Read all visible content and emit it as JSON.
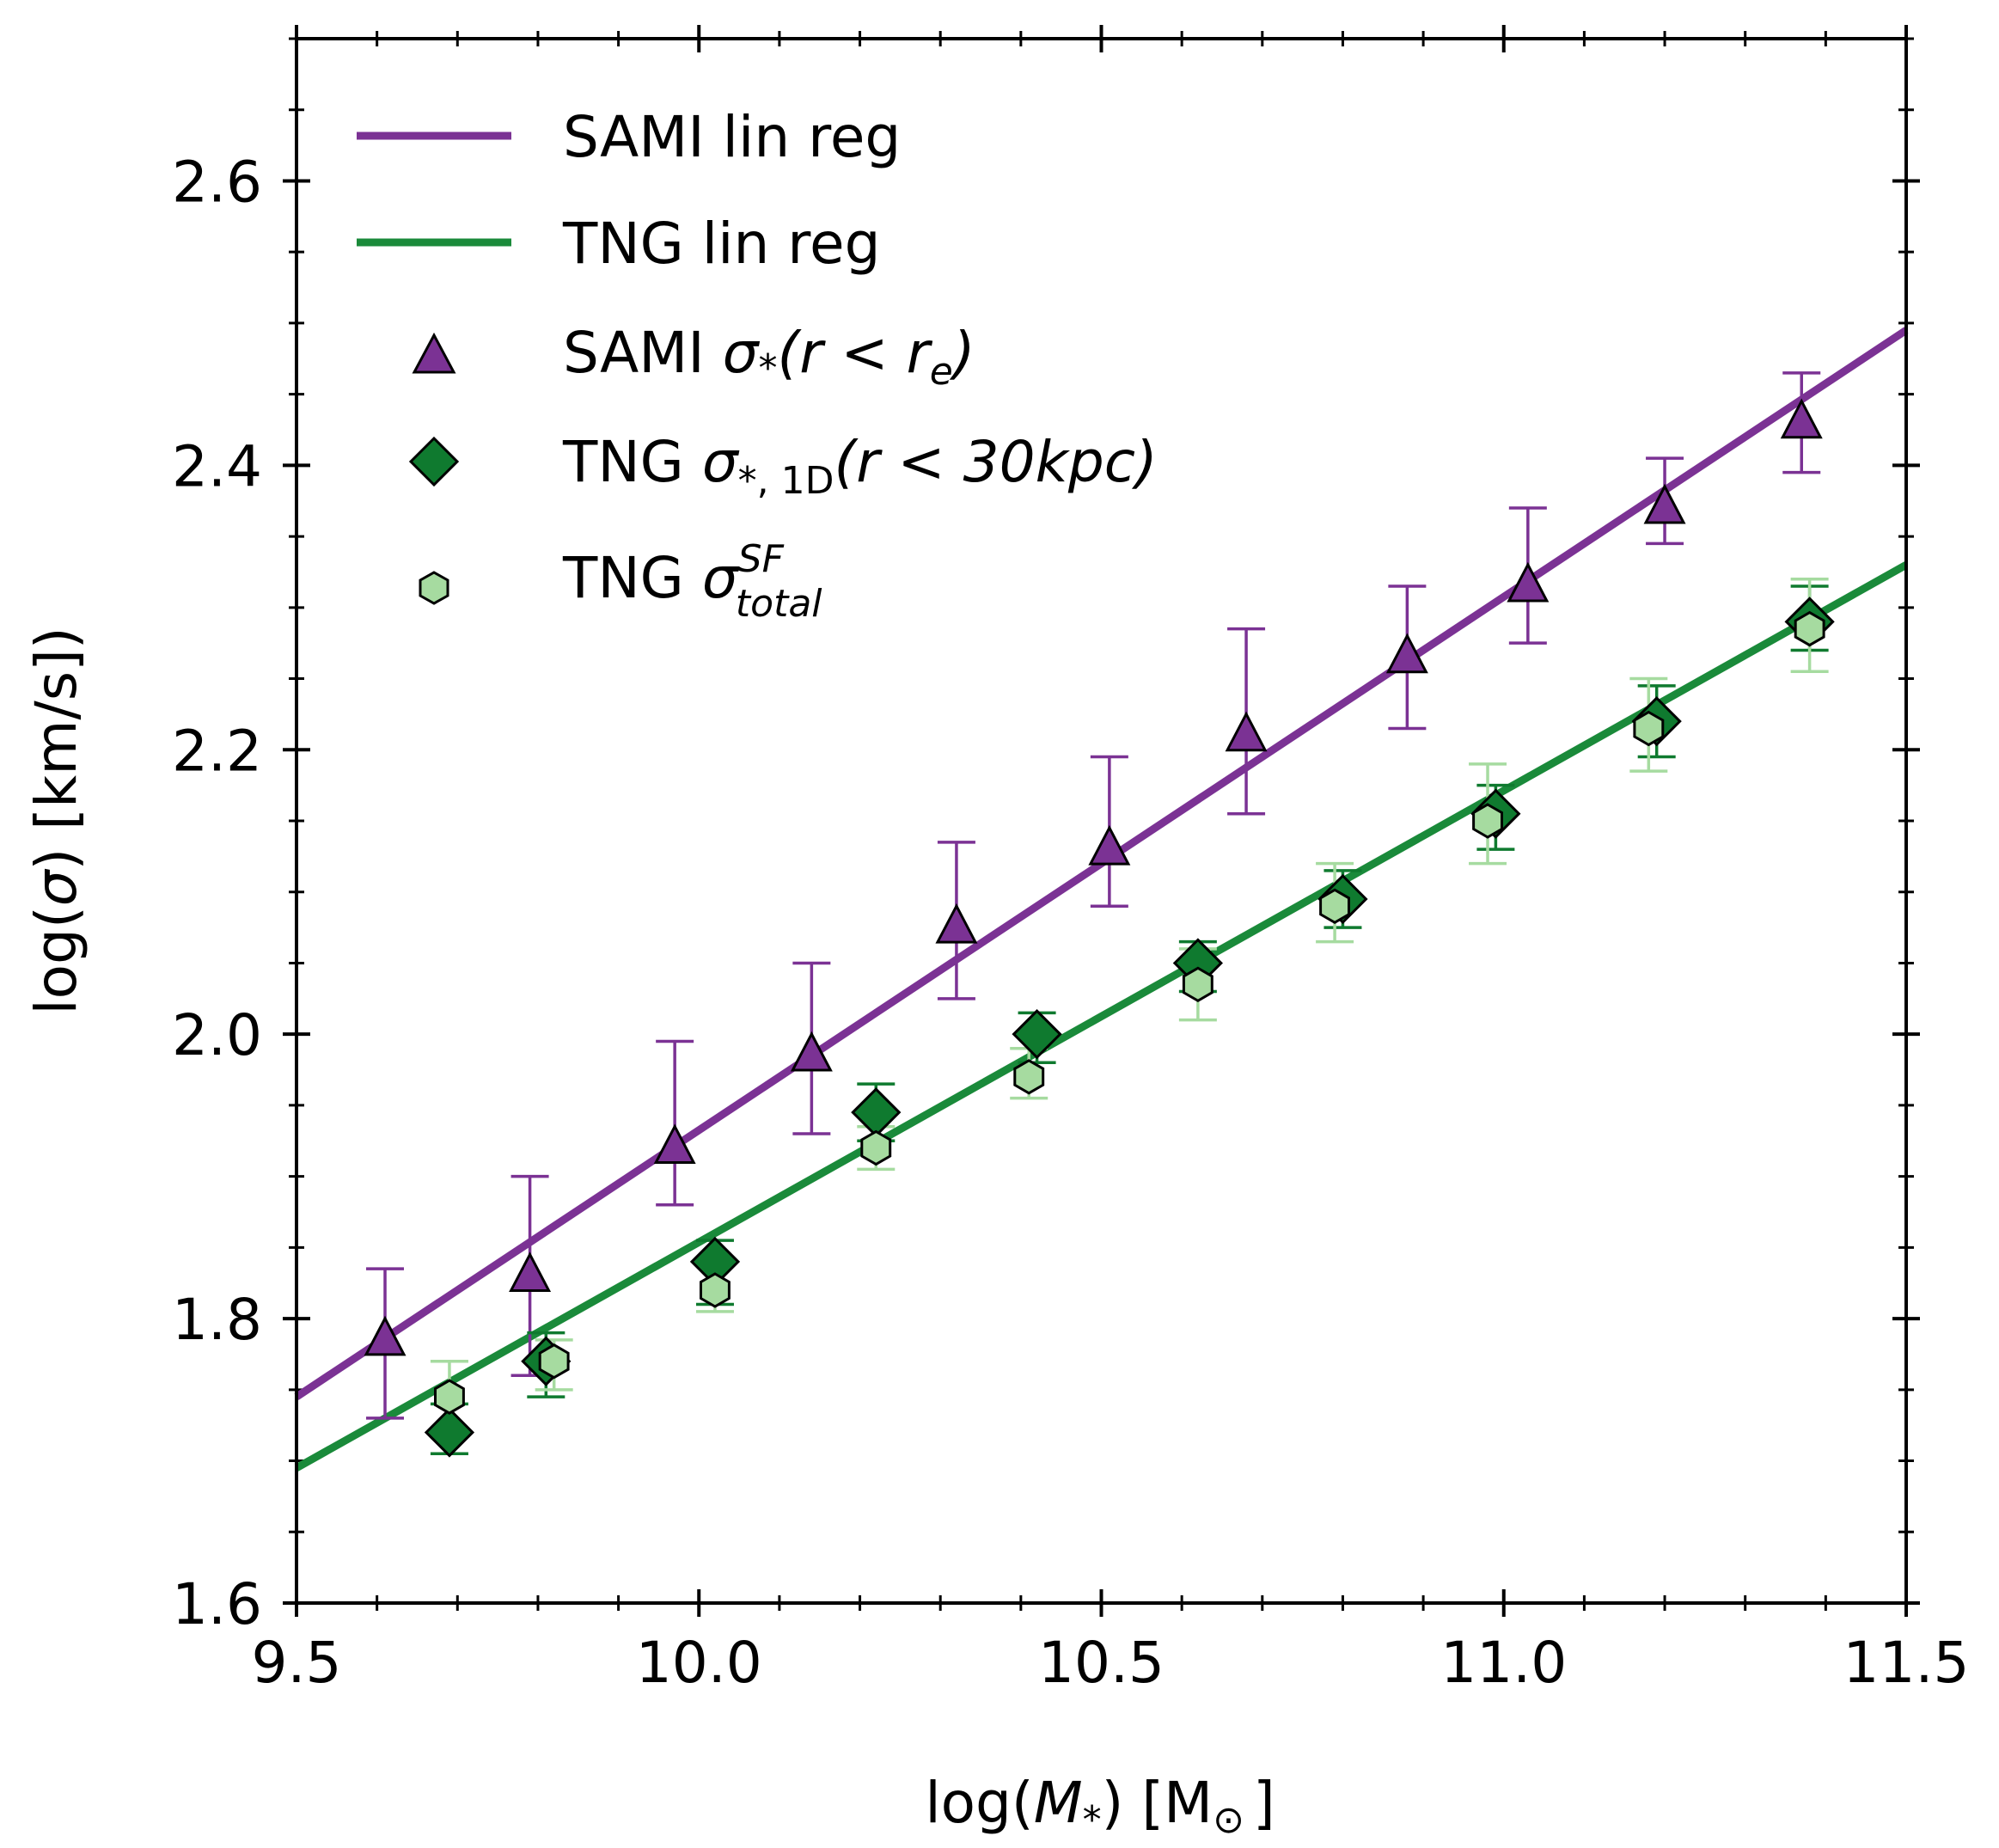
{
  "chart_data": {
    "type": "scatter",
    "xlabel": {
      "pre": "log(",
      "var": "M",
      "sub": "*",
      "post": ") [M",
      "sun": "⊙",
      "end": "]"
    },
    "ylabel": {
      "pre": "log(",
      "var": "σ",
      "post": ") [km/s])"
    },
    "xlim": [
      9.5,
      11.5
    ],
    "ylim": [
      1.6,
      2.7
    ],
    "xticks": [
      9.5,
      10.0,
      10.5,
      11.0,
      11.5
    ],
    "xtick_labels": [
      "9.5",
      "10.0",
      "10.5",
      "11.0",
      "11.5"
    ],
    "yticks": [
      1.6,
      1.8,
      2.0,
      2.2,
      2.4,
      2.6
    ],
    "ytick_labels": [
      "1.6",
      "1.8",
      "2.0",
      "2.2",
      "2.4",
      "2.6"
    ],
    "x_minor_step": 0.1,
    "y_minor_step": 0.05,
    "grid": false,
    "legend_position": "top-left",
    "colors": {
      "sami": "#7b3294",
      "tng_line": "#1a8a3a",
      "tng_diamond": "#0f7a2f",
      "tng_hex": "#a6dba0",
      "tng_hex_err": "#a6dba0"
    },
    "legend": [
      {
        "key": "sami_line",
        "label": "SAMI lin reg"
      },
      {
        "key": "tng_line",
        "label": "TNG lin reg"
      },
      {
        "key": "sami_pts",
        "prefix": "SAMI ",
        "sym": "σ",
        "sub": "*",
        "rest": "(r < r",
        "rest_sub": "e",
        "close": ")"
      },
      {
        "key": "tng_diam",
        "prefix": "TNG ",
        "sym": "σ",
        "sub": "*, 1D",
        "rest": "(r < 30kpc)"
      },
      {
        "key": "tng_hex",
        "prefix": "TNG ",
        "sym": "σ",
        "sup": "SF",
        "sub": "total"
      }
    ],
    "series": [
      {
        "name": "SAMI lin reg",
        "kind": "line",
        "x": [
          9.5,
          11.5
        ],
        "y": [
          1.745,
          2.495
        ]
      },
      {
        "name": "TNG lin reg",
        "kind": "line",
        "x": [
          9.5,
          11.5
        ],
        "y": [
          1.695,
          2.33
        ]
      },
      {
        "name": "SAMI σ*(r < re)",
        "kind": "points",
        "marker": "triangle",
        "x": [
          9.61,
          9.79,
          9.97,
          10.14,
          10.32,
          10.51,
          10.68,
          10.88,
          11.03,
          11.2,
          11.37
        ],
        "y": [
          1.785,
          1.83,
          1.92,
          1.985,
          2.075,
          2.13,
          2.21,
          2.265,
          2.315,
          2.37,
          2.43
        ],
        "ylo": [
          1.73,
          1.76,
          1.88,
          1.93,
          2.025,
          2.09,
          2.155,
          2.215,
          2.275,
          2.345,
          2.395
        ],
        "yhi": [
          1.835,
          1.9,
          1.995,
          2.05,
          2.135,
          2.195,
          2.285,
          2.315,
          2.37,
          2.405,
          2.465
        ]
      },
      {
        "name": "TNG σ*,1D(r < 30kpc)",
        "kind": "points",
        "marker": "diamond",
        "x": [
          9.69,
          9.81,
          10.02,
          10.22,
          10.42,
          10.62,
          10.8,
          10.99,
          11.19,
          11.38
        ],
        "y": [
          1.72,
          1.77,
          1.84,
          1.945,
          2.0,
          2.05,
          2.095,
          2.155,
          2.22,
          2.29
        ],
        "ylo": [
          1.705,
          1.745,
          1.81,
          1.925,
          1.98,
          2.03,
          2.075,
          2.13,
          2.195,
          2.27
        ],
        "yhi": [
          1.74,
          1.79,
          1.855,
          1.965,
          2.015,
          2.065,
          2.115,
          2.175,
          2.245,
          2.315
        ]
      },
      {
        "name": "TNG σSF total",
        "kind": "points",
        "marker": "hexagon",
        "x": [
          9.69,
          9.82,
          10.02,
          10.22,
          10.41,
          10.62,
          10.79,
          10.98,
          11.18,
          11.38
        ],
        "y": [
          1.745,
          1.77,
          1.82,
          1.92,
          1.97,
          2.035,
          2.09,
          2.15,
          2.215,
          2.285
        ],
        "ylo": [
          1.72,
          1.75,
          1.805,
          1.905,
          1.955,
          2.01,
          2.065,
          2.12,
          2.185,
          2.255
        ],
        "yhi": [
          1.77,
          1.785,
          1.84,
          1.935,
          1.99,
          2.06,
          2.12,
          2.19,
          2.25,
          2.32
        ]
      }
    ]
  }
}
